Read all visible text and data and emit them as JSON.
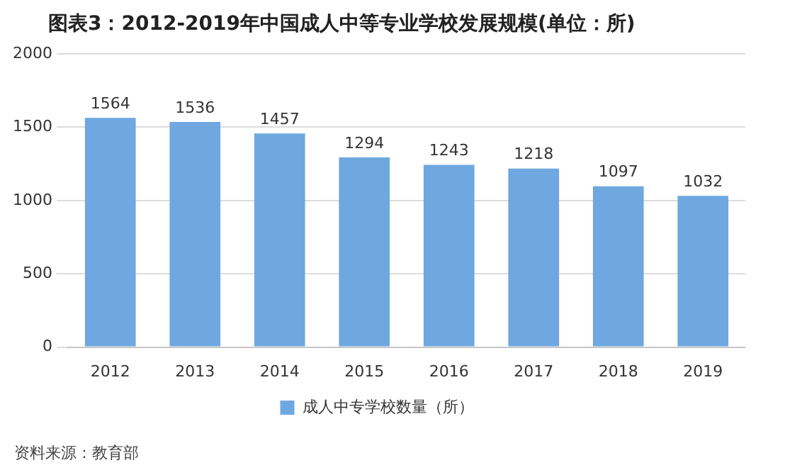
{
  "chart_data": {
    "type": "bar",
    "title": "图表3：2012-2019年中国成人中等专业学校发展规模(单位：所)",
    "categories": [
      "2012",
      "2013",
      "2014",
      "2015",
      "2016",
      "2017",
      "2018",
      "2019"
    ],
    "series": [
      {
        "name": "成人中专学校数量（所）",
        "color": "#6fa8e0",
        "values": [
          1564,
          1536,
          1457,
          1294,
          1243,
          1218,
          1097,
          1032
        ]
      }
    ],
    "ylim": [
      0,
      2000
    ],
    "yticks": [
      0,
      500,
      1000,
      1500,
      2000
    ],
    "grid": "y",
    "legend": "bottom",
    "data_labels": true,
    "annotations": [
      "资料来源：教育部"
    ]
  }
}
